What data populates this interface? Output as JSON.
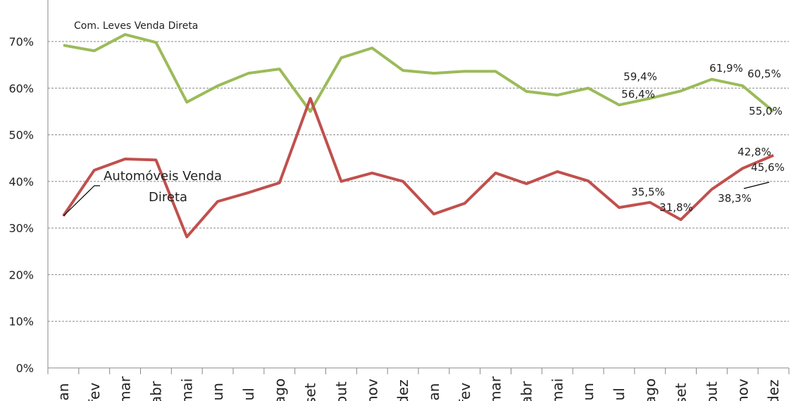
{
  "chart_data": {
    "type": "line",
    "title": "",
    "xlabel": "",
    "ylabel": "",
    "ylim": [
      0,
      70
    ],
    "yticks": [
      "0%",
      "10%",
      "20%",
      "30%",
      "40%",
      "50%",
      "60%",
      "70%"
    ],
    "grid": true,
    "categories": [
      "jan",
      "fev",
      "mar",
      "abr",
      "mai",
      "jun",
      "jul",
      "ago",
      "set",
      "out",
      "nov",
      "dez",
      "jan",
      "fev",
      "mar",
      "abr",
      "mai",
      "jun",
      "jul",
      "ago",
      "set",
      "out",
      "nov",
      "dez"
    ],
    "series": [
      {
        "name": "Com. Leves Venda Direta",
        "color": "#9bbb59",
        "values": [
          69.2,
          68.0,
          71.5,
          69.8,
          57.0,
          60.5,
          63.2,
          64.1,
          55.0,
          66.5,
          68.6,
          63.8,
          63.2,
          63.6,
          63.6,
          59.3,
          58.5,
          60.0,
          56.4,
          57.8,
          59.4,
          61.9,
          60.5,
          55.0
        ]
      },
      {
        "name": "Automóveis Venda Direta",
        "color": "#c0504d",
        "values": [
          32.6,
          42.4,
          44.8,
          44.6,
          28.1,
          35.7,
          37.6,
          39.7,
          57.8,
          40.0,
          41.8,
          40.0,
          33.0,
          35.3,
          41.8,
          39.5,
          42.1,
          40.1,
          34.4,
          35.5,
          31.8,
          38.3,
          42.8,
          45.6
        ]
      }
    ],
    "series_labels": {
      "green": "Com. Leves Venda Direta",
      "red_line1": "Automóveis Venda",
      "red_line2": "Direta"
    },
    "data_labels": [
      {
        "series": 0,
        "index": 18,
        "text": "56,4%"
      },
      {
        "series": 0,
        "index": 20,
        "text": "59,4%"
      },
      {
        "series": 0,
        "index": 21,
        "text": "61,9%"
      },
      {
        "series": 0,
        "index": 22,
        "text": "60,5%"
      },
      {
        "series": 0,
        "index": 23,
        "text": "55,0%"
      },
      {
        "series": 1,
        "index": 19,
        "text": "35,5%"
      },
      {
        "series": 1,
        "index": 20,
        "text": "31,8%"
      },
      {
        "series": 1,
        "index": 21,
        "text": "38,3%"
      },
      {
        "series": 1,
        "index": 22,
        "text": "42,8%"
      },
      {
        "series": 1,
        "index": 23,
        "text": "45,6%"
      }
    ]
  }
}
